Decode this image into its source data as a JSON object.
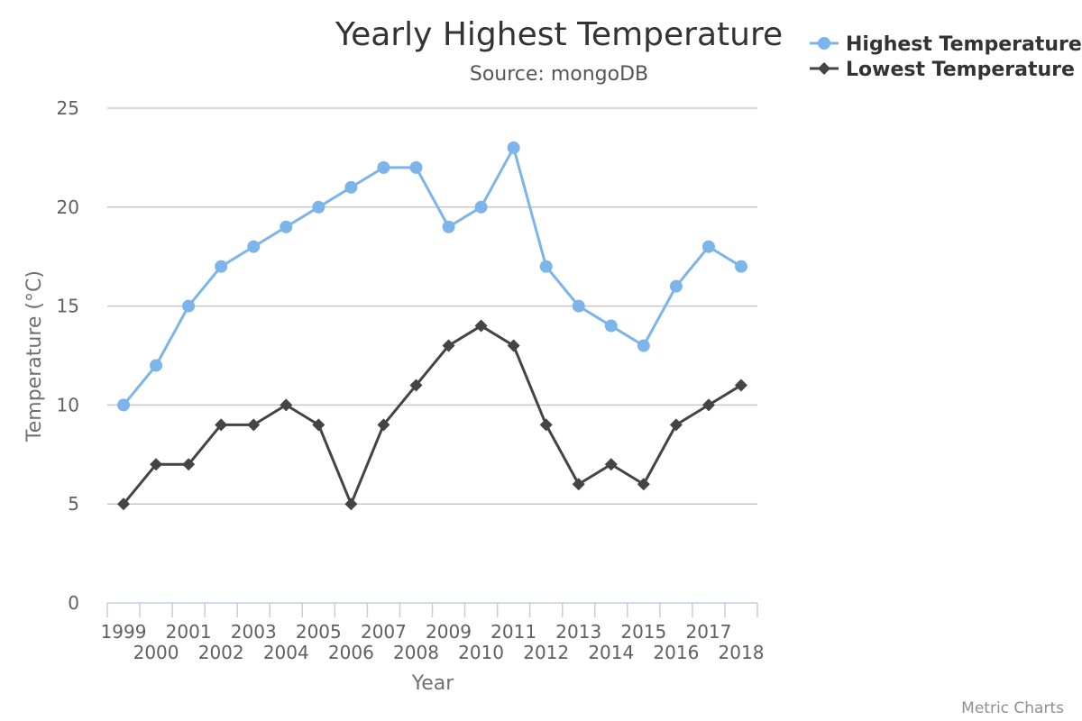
{
  "chart_data": {
    "type": "line",
    "title": "Yearly Highest Temperature",
    "subtitle": "Source: mongoDB",
    "xlabel": "Year",
    "ylabel": "Temperature (°C)",
    "ylim": [
      0,
      25
    ],
    "yticks": [
      0,
      5,
      10,
      15,
      20,
      25
    ],
    "grid": true,
    "legend_position": "top-right",
    "categories": [
      "1999",
      "2000",
      "2001",
      "2002",
      "2003",
      "2004",
      "2005",
      "2006",
      "2007",
      "2008",
      "2009",
      "2010",
      "2011",
      "2012",
      "2013",
      "2014",
      "2015",
      "2016",
      "2017",
      "2018"
    ],
    "series": [
      {
        "name": "Highest Temperature",
        "color": "#7cb5ec",
        "marker": "circle",
        "values": [
          10,
          12,
          15,
          17,
          18,
          19,
          20,
          21,
          22,
          22,
          19,
          20,
          23,
          17,
          15,
          14,
          13,
          16,
          18,
          17
        ]
      },
      {
        "name": "Lowest Temperature",
        "color": "#434348",
        "marker": "diamond",
        "values": [
          5,
          7,
          7,
          9,
          9,
          10,
          9,
          5,
          9,
          11,
          13,
          14,
          13,
          9,
          6,
          7,
          6,
          9,
          10,
          11
        ]
      }
    ],
    "credits": "Metric Charts"
  }
}
